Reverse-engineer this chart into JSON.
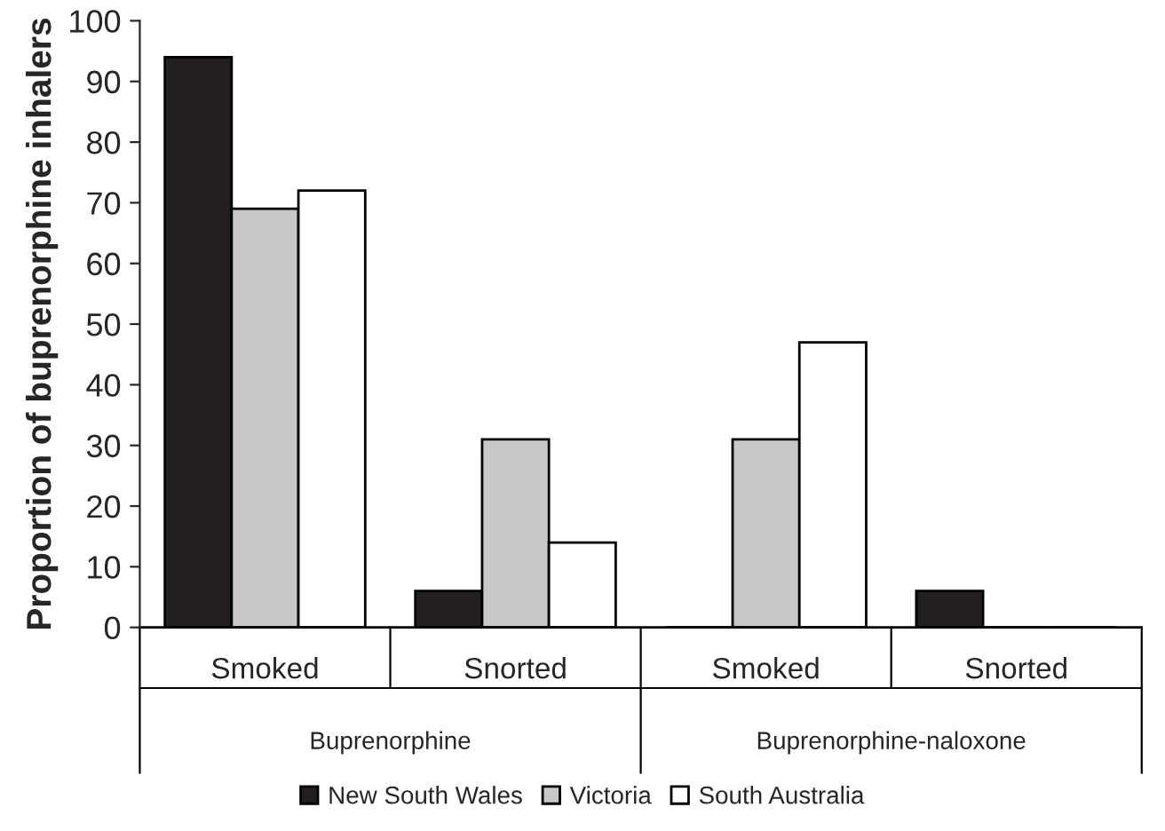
{
  "chart_data": {
    "type": "bar",
    "ylabel": "Proportion of buprenorphine inhalers",
    "categories": [
      "Smoked",
      "Snorted",
      "Smoked",
      "Snorted"
    ],
    "series": [
      {
        "name": "New South Wales",
        "color": "#231f20",
        "values": [
          94,
          6,
          0,
          6
        ]
      },
      {
        "name": "Victoria",
        "color": "#c7c8ca",
        "values": [
          69,
          31,
          31,
          0
        ]
      },
      {
        "name": "South Australia",
        "color": "#ffffff",
        "values": [
          72,
          14,
          47,
          0
        ]
      }
    ],
    "annotations": [
      "Buprenorphine",
      "Buprenorphine-naloxone"
    ],
    "ylim": [
      0,
      100
    ],
    "yticks": [
      0,
      10,
      20,
      30,
      40,
      50,
      60,
      70,
      80,
      90,
      100
    ],
    "grid": false,
    "legend": "bottom"
  }
}
